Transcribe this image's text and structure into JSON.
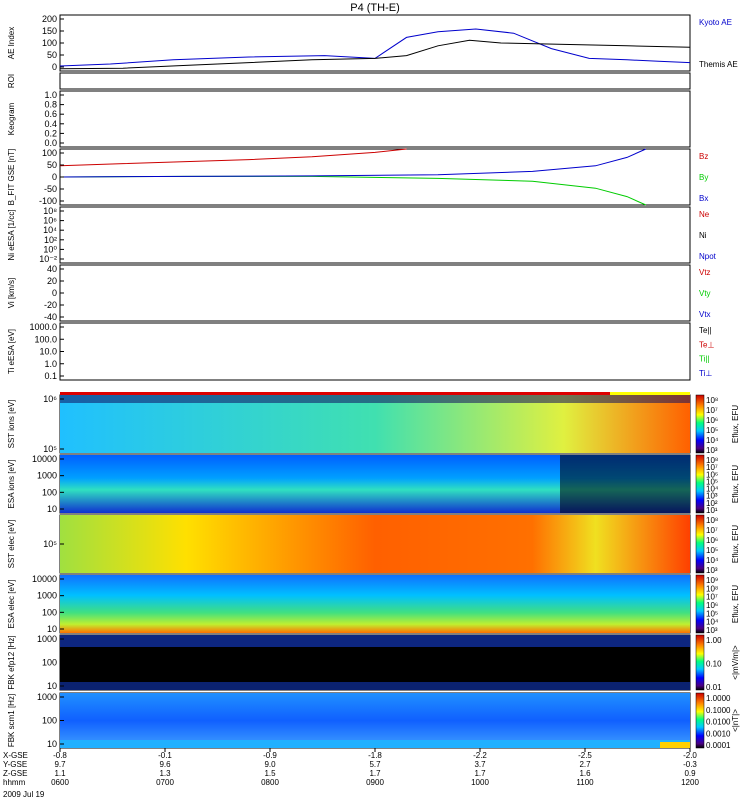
{
  "chart_data": {
    "type": "line",
    "title": "P4 (TH-E)",
    "date": "2009 Jul 19",
    "panels": [
      {
        "id": "ae",
        "ylabel": "AE Index",
        "yticks": [
          "200",
          "150",
          "100",
          "50",
          "0"
        ],
        "legend": [
          {
            "label": "Kyoto AE",
            "color": "#0000cc"
          },
          {
            "label": "Themis AE",
            "color": "#000000"
          }
        ],
        "series": [
          {
            "name": "Kyoto AE",
            "color": "#0000cc",
            "x": [
              0,
              0.08,
              0.18,
              0.3,
              0.42,
              0.5,
              0.55,
              0.6,
              0.66,
              0.72,
              0.78,
              0.84,
              0.9,
              0.95,
              1.0
            ],
            "y": [
              18,
              25,
              40,
              50,
              55,
              45,
              120,
              140,
              150,
              135,
              80,
              45,
              40,
              35,
              30
            ]
          },
          {
            "name": "Themis AE",
            "color": "#000000",
            "x": [
              0,
              0.1,
              0.2,
              0.3,
              0.4,
              0.5,
              0.55,
              0.6,
              0.65,
              0.7,
              0.8,
              0.9,
              1.0
            ],
            "y": [
              8,
              10,
              20,
              30,
              40,
              45,
              55,
              90,
              110,
              100,
              95,
              90,
              85
            ]
          }
        ]
      },
      {
        "id": "roi",
        "ylabel": "ROI"
      },
      {
        "id": "keogram",
        "ylabel": "Keogram",
        "yticks": [
          "1.0",
          "0.8",
          "0.6",
          "0.4",
          "0.2",
          "0.0"
        ]
      },
      {
        "id": "bfield",
        "ylabel": "B_FIT GSE [nT]",
        "yticks": [
          "100",
          "50",
          "0",
          "-50",
          "-100"
        ],
        "legend": [
          {
            "label": "Bz",
            "color": "#cc0000"
          },
          {
            "label": "By",
            "color": "#00cc00"
          },
          {
            "label": "Bx",
            "color": "#0000cc"
          }
        ],
        "series": [
          {
            "name": "Bz",
            "color": "#cc0000",
            "x": [
              0,
              0.1,
              0.2,
              0.3,
              0.4,
              0.5,
              0.55
            ],
            "y": [
              40,
              48,
              55,
              62,
              72,
              88,
              100
            ]
          },
          {
            "name": "By",
            "color": "#00cc00",
            "x": [
              0,
              0.2,
              0.4,
              0.6,
              0.75,
              0.85,
              0.9,
              0.93
            ],
            "y": [
              0,
              2,
              2,
              -5,
              -15,
              -40,
              -70,
              -100
            ]
          },
          {
            "name": "Bx",
            "color": "#0000cc",
            "x": [
              0,
              0.2,
              0.4,
              0.6,
              0.75,
              0.85,
              0.9,
              0.93
            ],
            "y": [
              0,
              2,
              4,
              8,
              20,
              40,
              70,
              100
            ]
          }
        ]
      },
      {
        "id": "density",
        "ylabel": "Ni eESA [1/cc]",
        "yticks": [
          "10⁸",
          "10⁶",
          "10⁴",
          "10²",
          "10⁰",
          "10⁻²"
        ],
        "legend": [
          {
            "label": "Ne",
            "color": "#cc0000"
          },
          {
            "label": "Ni",
            "color": "#000000"
          },
          {
            "label": "Npot",
            "color": "#0000cc"
          }
        ]
      },
      {
        "id": "velocity",
        "ylabel": "Vi [km/s]",
        "yticks": [
          "40",
          "20",
          "0",
          "-20",
          "-40"
        ],
        "legend": [
          {
            "label": "Vtz",
            "color": "#cc0000"
          },
          {
            "label": "Vty",
            "color": "#00cc00"
          },
          {
            "label": "Vtx",
            "color": "#0000cc"
          }
        ]
      },
      {
        "id": "temperature",
        "ylabel": "Ti eESA [eV]",
        "yticks": [
          "1000.0",
          "100.0",
          "10.0",
          "1.0",
          "0.1"
        ],
        "legend": [
          {
            "label": "Te||",
            "color": "#000000"
          },
          {
            "label": "Te⊥",
            "color": "#cc0000"
          },
          {
            "label": "Ti||",
            "color": "#00cc00"
          },
          {
            "label": "Ti⊥",
            "color": "#0000cc"
          }
        ]
      },
      {
        "id": "sst_ion",
        "ylabel": "SST ions [eV]",
        "yticks": [
          "10⁶",
          "10⁵"
        ],
        "colorbar": {
          "label": "Eflux, EFU",
          "ticks": [
            "10⁸",
            "10⁷",
            "10⁶",
            "10⁵",
            "10⁴",
            "10³"
          ]
        }
      },
      {
        "id": "esa_ion",
        "ylabel": "ESA ions [eV]",
        "yticks": [
          "10000",
          "1000",
          "100",
          "10"
        ],
        "colorbar": {
          "label": "Eflux, EFU",
          "ticks": [
            "10⁸",
            "10⁷",
            "10⁶",
            "10⁵",
            "10⁴",
            "10³",
            "10²",
            "10¹"
          ]
        }
      },
      {
        "id": "sst_elec",
        "ylabel": "SST elec [eV]",
        "yticks": [
          "10⁵"
        ],
        "colorbar": {
          "label": "Eflux, EFU",
          "ticks": [
            "10⁸",
            "10⁷",
            "10⁶",
            "10⁵",
            "10⁴",
            "10³"
          ]
        }
      },
      {
        "id": "esa_elec",
        "ylabel": "ESA elec [eV]",
        "yticks": [
          "10000",
          "1000",
          "100",
          "10"
        ],
        "colorbar": {
          "label": "Eflux, EFU",
          "ticks": [
            "10⁹",
            "10⁸",
            "10⁷",
            "10⁶",
            "10⁵",
            "10⁴",
            "10³"
          ]
        }
      },
      {
        "id": "fbk_e",
        "ylabel": "FBK efp12 [Hz]",
        "yticks": [
          "1000",
          "100",
          "10"
        ],
        "colorbar": {
          "label": "<|mV/m|>",
          "ticks": [
            "1.00",
            "0.10",
            "0.01"
          ]
        }
      },
      {
        "id": "fbk_b",
        "ylabel": "FBK scm1 [Hz]",
        "yticks": [
          "1000",
          "100",
          "10"
        ],
        "colorbar": {
          "label": "<|nT|>",
          "ticks": [
            "1.0000",
            "0.1000",
            "0.0100",
            "0.0010",
            "0.0001"
          ]
        }
      }
    ],
    "x_axis": {
      "labels": [
        "X-GSE",
        "Y-GSE",
        "Z-GSE",
        "hhmm"
      ],
      "ticks": [
        {
          "x": "-0.8",
          "y": "9.7",
          "z": "1.1",
          "t": "0600"
        },
        {
          "x": "-0.1",
          "y": "9.6",
          "z": "1.3",
          "t": "0700"
        },
        {
          "x": "-0.9",
          "y": "9.0",
          "z": "1.5",
          "t": "0800"
        },
        {
          "x": "-1.8",
          "y": "5.7",
          "z": "1.7",
          "t": "0900"
        },
        {
          "x": "-2.2",
          "y": "3.7",
          "z": "1.7",
          "t": "1000"
        },
        {
          "x": "-2.5",
          "y": "2.7",
          "z": "1.6",
          "t": "1100"
        },
        {
          "x": "-2.0",
          "y": "-0.3",
          "z": "0.9",
          "t": "1200"
        }
      ]
    }
  }
}
